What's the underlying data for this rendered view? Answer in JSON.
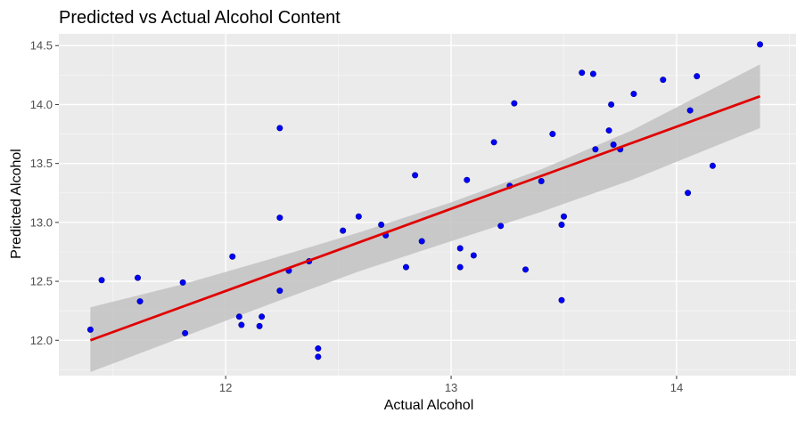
{
  "chart_data": {
    "type": "scatter",
    "title": "Predicted vs Actual Alcohol Content",
    "xlabel": "Actual Alcohol",
    "ylabel": "Predicted Alcohol",
    "xlim": [
      11.26,
      14.53
    ],
    "ylim": [
      11.7,
      14.6
    ],
    "x_ticks": [
      12,
      13,
      14
    ],
    "x_tick_labels": [
      "12",
      "13",
      "14"
    ],
    "y_ticks": [
      12.0,
      12.5,
      13.0,
      13.5,
      14.0,
      14.5
    ],
    "y_tick_labels": [
      "12.0",
      "12.5",
      "13.0",
      "13.5",
      "14.0",
      "14.5"
    ],
    "grid": true,
    "legend": "none",
    "colors": {
      "panel_background": "#ebebeb",
      "grid_major": "#ffffff",
      "grid_minor": "#f5f5f5",
      "points": "#0000ff",
      "fit_line": "#e00000",
      "confidence_band": "#c2c2c2"
    },
    "points": [
      {
        "x": 11.4,
        "y": 12.09
      },
      {
        "x": 11.45,
        "y": 12.51
      },
      {
        "x": 11.61,
        "y": 12.53
      },
      {
        "x": 11.62,
        "y": 12.33
      },
      {
        "x": 11.81,
        "y": 12.49
      },
      {
        "x": 11.82,
        "y": 12.06
      },
      {
        "x": 12.03,
        "y": 12.71
      },
      {
        "x": 12.06,
        "y": 12.2
      },
      {
        "x": 12.07,
        "y": 12.13
      },
      {
        "x": 12.15,
        "y": 12.12
      },
      {
        "x": 12.16,
        "y": 12.2
      },
      {
        "x": 12.24,
        "y": 13.8
      },
      {
        "x": 12.24,
        "y": 13.04
      },
      {
        "x": 12.24,
        "y": 12.42
      },
      {
        "x": 12.28,
        "y": 12.59
      },
      {
        "x": 12.37,
        "y": 12.67
      },
      {
        "x": 12.41,
        "y": 11.93
      },
      {
        "x": 12.41,
        "y": 11.86
      },
      {
        "x": 12.52,
        "y": 12.93
      },
      {
        "x": 12.59,
        "y": 13.05
      },
      {
        "x": 12.69,
        "y": 12.98
      },
      {
        "x": 12.71,
        "y": 12.89
      },
      {
        "x": 12.8,
        "y": 12.62
      },
      {
        "x": 12.84,
        "y": 13.4
      },
      {
        "x": 12.87,
        "y": 12.84
      },
      {
        "x": 13.04,
        "y": 12.78
      },
      {
        "x": 13.04,
        "y": 12.62
      },
      {
        "x": 13.07,
        "y": 13.36
      },
      {
        "x": 13.1,
        "y": 12.72
      },
      {
        "x": 13.19,
        "y": 13.68
      },
      {
        "x": 13.22,
        "y": 12.97
      },
      {
        "x": 13.26,
        "y": 13.31
      },
      {
        "x": 13.28,
        "y": 14.01
      },
      {
        "x": 13.33,
        "y": 12.6
      },
      {
        "x": 13.4,
        "y": 13.35
      },
      {
        "x": 13.45,
        "y": 13.75
      },
      {
        "x": 13.49,
        "y": 12.34
      },
      {
        "x": 13.49,
        "y": 12.98
      },
      {
        "x": 13.5,
        "y": 13.05
      },
      {
        "x": 13.58,
        "y": 14.27
      },
      {
        "x": 13.63,
        "y": 14.26
      },
      {
        "x": 13.64,
        "y": 13.62
      },
      {
        "x": 13.7,
        "y": 13.78
      },
      {
        "x": 13.71,
        "y": 14.0
      },
      {
        "x": 13.72,
        "y": 13.66
      },
      {
        "x": 13.75,
        "y": 13.62
      },
      {
        "x": 13.81,
        "y": 14.09
      },
      {
        "x": 13.94,
        "y": 14.21
      },
      {
        "x": 14.05,
        "y": 13.25
      },
      {
        "x": 14.06,
        "y": 13.95
      },
      {
        "x": 14.09,
        "y": 14.24
      },
      {
        "x": 14.16,
        "y": 13.48
      },
      {
        "x": 14.37,
        "y": 14.51
      }
    ],
    "fit_line": {
      "x": [
        11.4,
        14.37
      ],
      "y": [
        12.0,
        14.07
      ]
    },
    "confidence_band": {
      "x": [
        11.4,
        11.8,
        12.2,
        12.6,
        13.0,
        13.4,
        13.8,
        14.37
      ],
      "upper": [
        12.28,
        12.47,
        12.69,
        12.92,
        13.17,
        13.45,
        13.78,
        14.34
      ],
      "lower": [
        11.73,
        12.02,
        12.31,
        12.59,
        12.84,
        13.09,
        13.36,
        13.8
      ]
    }
  }
}
